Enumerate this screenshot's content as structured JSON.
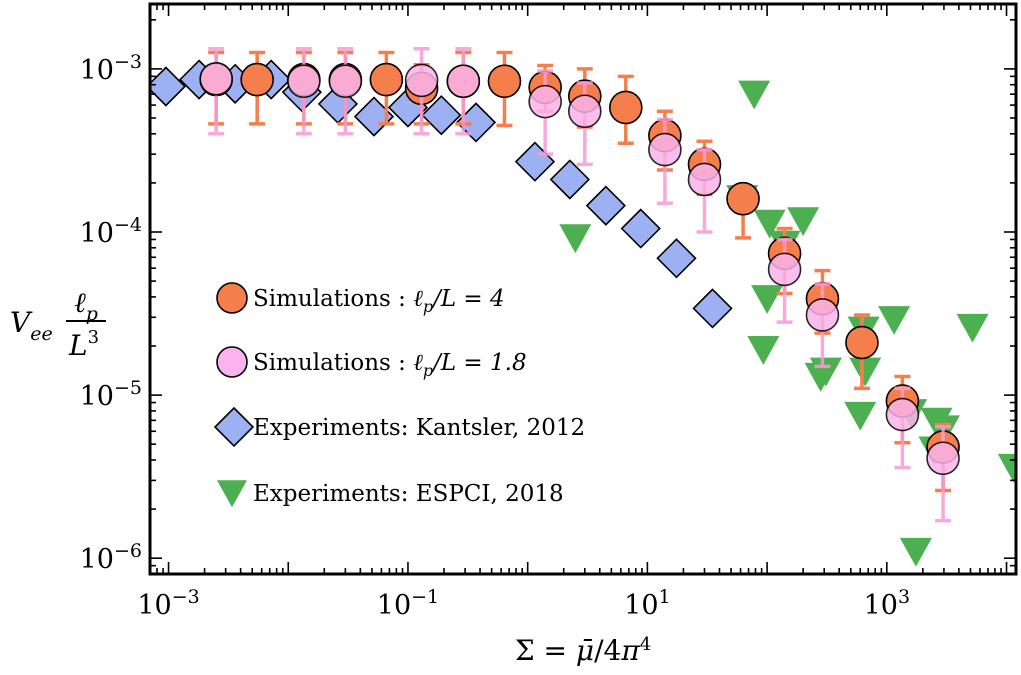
{
  "chart_data": {
    "type": "scatter",
    "xscale": "log",
    "yscale": "log",
    "xlim": [
      0.0007,
      12000
    ],
    "ylim": [
      8e-07,
      0.0025
    ],
    "xlabel": "Σ = μ̄/4π⁴",
    "ylabel": "V_ee ℓ_p / L³",
    "xticks": [
      {
        "value": 0.001,
        "base": "10",
        "exp": "−3"
      },
      {
        "value": 0.1,
        "base": "10",
        "exp": "−1"
      },
      {
        "value": 10,
        "base": "10",
        "exp": "1"
      },
      {
        "value": 1000,
        "base": "10",
        "exp": "3"
      }
    ],
    "yticks": [
      {
        "value": 1e-06,
        "base": "10",
        "exp": "−6"
      },
      {
        "value": 1e-05,
        "base": "10",
        "exp": "−5"
      },
      {
        "value": 0.0001,
        "base": "10",
        "exp": "−4"
      },
      {
        "value": 0.001,
        "base": "10",
        "exp": "−3"
      }
    ],
    "legend_position": "lower-left",
    "series": [
      {
        "name": "Simulations : ℓp/L = 4",
        "label": {
          "prefix": "Simulations : ",
          "math": "ℓ",
          "sub": "p",
          "suffix": "/L = 4"
        },
        "marker": "circle",
        "color": "#f57f4c",
        "errcolor": "#f57f4c",
        "points": [
          {
            "x": 0.0025,
            "y": 0.00086,
            "lo": 0.00046,
            "hi": 0.00126
          },
          {
            "x": 0.0055,
            "y": 0.00086,
            "lo": 0.00046,
            "hi": 0.00126
          },
          {
            "x": 0.0135,
            "y": 0.00086,
            "lo": 0.00046,
            "hi": 0.00126
          },
          {
            "x": 0.03,
            "y": 0.00086,
            "lo": 0.00046,
            "hi": 0.00126
          },
          {
            "x": 0.066,
            "y": 0.00086,
            "lo": 0.00046,
            "hi": 0.00126
          },
          {
            "x": 0.13,
            "y": 0.00076,
            "lo": 0.00046,
            "hi": 0.00106
          },
          {
            "x": 0.29,
            "y": 0.00084,
            "lo": 0.00046,
            "hi": 0.00126
          },
          {
            "x": 0.64,
            "y": 0.00084,
            "lo": 0.00045,
            "hi": 0.00126
          },
          {
            "x": 1.4,
            "y": 0.00077,
            "lo": 0.00055,
            "hi": 0.00105
          },
          {
            "x": 3.0,
            "y": 0.00068,
            "lo": 0.00044,
            "hi": 0.001
          },
          {
            "x": 6.6,
            "y": 0.00058,
            "lo": 0.00035,
            "hi": 0.0009
          },
          {
            "x": 14,
            "y": 0.00039,
            "lo": 0.00024,
            "hi": 0.00055
          },
          {
            "x": 30,
            "y": 0.00026,
            "lo": 0.00017,
            "hi": 0.00036
          },
          {
            "x": 63,
            "y": 0.00016,
            "lo": 9.2e-05,
            "hi": 0.00016
          },
          {
            "x": 140,
            "y": 7.4e-05,
            "lo": 4.2e-05,
            "hi": 0.000105
          },
          {
            "x": 290,
            "y": 3.9e-05,
            "lo": 2.4e-05,
            "hi": 5.8e-05
          },
          {
            "x": 620,
            "y": 2.1e-05,
            "lo": 1.1e-05,
            "hi": 3.1e-05
          },
          {
            "x": 1350,
            "y": 9.2e-06,
            "lo": 5.1e-06,
            "hi": 1.3e-05
          },
          {
            "x": 2950,
            "y": 4.8e-06,
            "lo": 2.6e-06,
            "hi": 6.6e-06
          }
        ]
      },
      {
        "name": "Simulations : ℓp/L = 1.8",
        "label": {
          "prefix": "Simulations : ",
          "math": "ℓ",
          "sub": "p",
          "suffix": "/L = 1.8"
        },
        "marker": "circle",
        "color": "#fab3ec",
        "errcolor": "#f99ad6",
        "points": [
          {
            "x": 0.0025,
            "y": 0.00087,
            "lo": 0.0004,
            "hi": 0.00133
          },
          {
            "x": 0.0135,
            "y": 0.00084,
            "lo": 0.0004,
            "hi": 0.00133
          },
          {
            "x": 0.03,
            "y": 0.00084,
            "lo": 0.0004,
            "hi": 0.00133
          },
          {
            "x": 0.13,
            "y": 0.00085,
            "lo": 0.0004,
            "hi": 0.00133
          },
          {
            "x": 0.29,
            "y": 0.00084,
            "lo": 0.0004,
            "hi": 0.00133
          },
          {
            "x": 1.4,
            "y": 0.00063,
            "lo": 0.0003,
            "hi": 0.00097
          },
          {
            "x": 3.0,
            "y": 0.00055,
            "lo": 0.00026,
            "hi": 0.00082
          },
          {
            "x": 14,
            "y": 0.00032,
            "lo": 0.00015,
            "hi": 0.00049
          },
          {
            "x": 30,
            "y": 0.00021,
            "lo": 0.0001,
            "hi": 0.00032
          },
          {
            "x": 140,
            "y": 5.9e-05,
            "lo": 2.8e-05,
            "hi": 9e-05
          },
          {
            "x": 290,
            "y": 3.1e-05,
            "lo": 1.5e-05,
            "hi": 4.8e-05
          },
          {
            "x": 1350,
            "y": 7.6e-06,
            "lo": 3.6e-06,
            "hi": 1.1e-05
          },
          {
            "x": 2950,
            "y": 4.1e-06,
            "lo": 1.7e-06,
            "hi": 6.4e-06
          }
        ]
      },
      {
        "name": "Experiments: Kantsler, 2012",
        "label": {
          "prefix": "Experiments: Kantsler, 2012"
        },
        "marker": "diamond",
        "color": "#9db0f2",
        "points": [
          {
            "x": 0.00095,
            "y": 0.00078
          },
          {
            "x": 0.0018,
            "y": 0.00086
          },
          {
            "x": 0.0036,
            "y": 0.00081
          },
          {
            "x": 0.0072,
            "y": 0.00086
          },
          {
            "x": 0.013,
            "y": 0.00072
          },
          {
            "x": 0.026,
            "y": 0.00061
          },
          {
            "x": 0.052,
            "y": 0.00051
          },
          {
            "x": 0.1,
            "y": 0.00058
          },
          {
            "x": 0.19,
            "y": 0.00052
          },
          {
            "x": 0.37,
            "y": 0.00047
          },
          {
            "x": 1.15,
            "y": 0.00027
          },
          {
            "x": 2.25,
            "y": 0.00021
          },
          {
            "x": 4.5,
            "y": 0.000145
          },
          {
            "x": 8.8,
            "y": 0.000105
          },
          {
            "x": 17.5,
            "y": 6.9e-05
          },
          {
            "x": 35,
            "y": 3.4e-05
          }
        ]
      },
      {
        "name": "Experiments: ESPCI, 2018",
        "label": {
          "prefix": "Experiments: ESPCI, 2018"
        },
        "marker": "triangle-down",
        "color": "#4caf50",
        "points": [
          {
            "x": 2.5,
            "y": 9.2e-05
          },
          {
            "x": 62,
            "y": 0.00016
          },
          {
            "x": 78,
            "y": 0.0007
          },
          {
            "x": 100,
            "y": 3.9e-05
          },
          {
            "x": 105,
            "y": 0.000113
          },
          {
            "x": 93,
            "y": 1.9e-05
          },
          {
            "x": 140,
            "y": 8.4e-05
          },
          {
            "x": 200,
            "y": 0.000117
          },
          {
            "x": 280,
            "y": 1.3e-05
          },
          {
            "x": 310,
            "y": 1.4e-05
          },
          {
            "x": 640,
            "y": 2.5e-05
          },
          {
            "x": 660,
            "y": 1.4e-05
          },
          {
            "x": 600,
            "y": 7.5e-06
          },
          {
            "x": 1150,
            "y": 2.9e-05
          },
          {
            "x": 1600,
            "y": 7.8e-06
          },
          {
            "x": 1750,
            "y": 1.1e-06
          },
          {
            "x": 2600,
            "y": 6.9e-06
          },
          {
            "x": 3000,
            "y": 6.2e-06
          },
          {
            "x": 2500,
            "y": 4.6e-06
          },
          {
            "x": 5200,
            "y": 2.6e-05
          },
          {
            "x": 11500,
            "y": 3.6e-06
          }
        ]
      }
    ]
  }
}
